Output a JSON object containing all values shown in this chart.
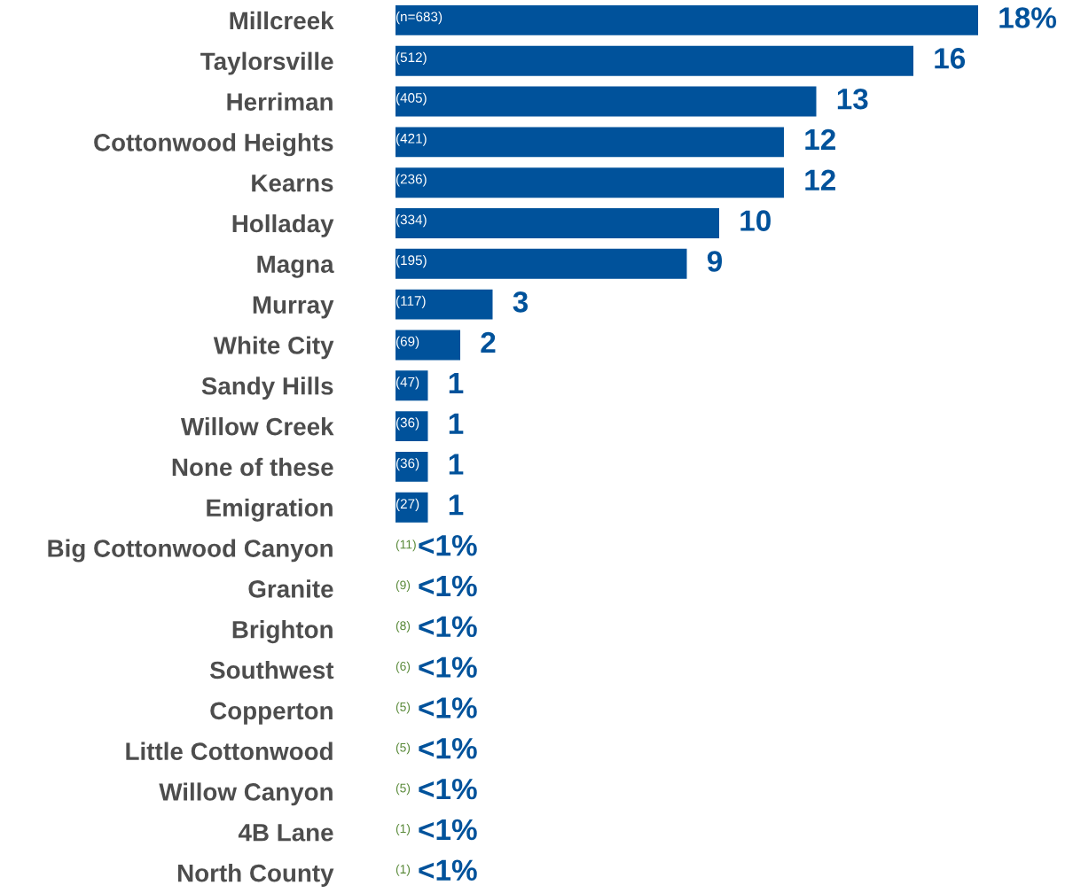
{
  "chart_data": {
    "type": "bar",
    "orientation": "horizontal",
    "categories": [
      "Millcreek",
      "Taylorsville",
      "Herriman",
      "Cottonwood Heights",
      "Kearns",
      "Holladay",
      "Magna",
      "Murray",
      "White City",
      "Sandy Hills",
      "Willow Creek",
      "None of these",
      "Emigration",
      "Big Cottonwood Canyon",
      "Granite",
      "Brighton",
      "Southwest",
      "Copperton",
      "Little Cottonwood",
      "Willow Canyon",
      "4B Lane",
      "North County"
    ],
    "values": [
      18,
      16,
      13,
      12,
      12,
      10,
      9,
      3,
      2,
      1,
      1,
      1,
      1,
      null,
      null,
      null,
      null,
      null,
      null,
      null,
      null,
      null
    ],
    "value_labels": [
      "18%",
      "16",
      "13",
      "12",
      "12",
      "10",
      "9",
      "3",
      "2",
      "1",
      "1",
      "1",
      "1",
      "<1%",
      "<1%",
      "<1%",
      "<1%",
      "<1%",
      "<1%",
      "<1%",
      "<1%",
      "<1%"
    ],
    "color": "#00529b",
    "annotations": [
      "(n=683)",
      "(512)",
      "(405)",
      "(421)",
      "(236)",
      "(334)",
      "(195)",
      "(117)",
      "(69)",
      "(47)",
      "(36)",
      "(36)",
      "(27)",
      "(11)",
      "(9)",
      "(8)",
      "(6)",
      "(5)",
      "(5)",
      "(5)",
      "(1)",
      "(1)"
    ]
  }
}
